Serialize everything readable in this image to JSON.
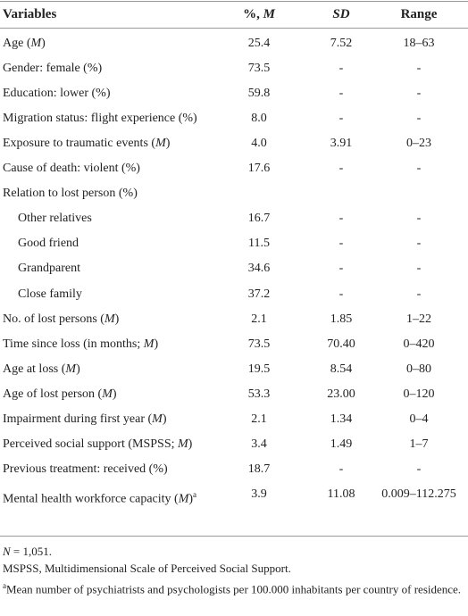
{
  "table": {
    "header": [
      "Variables",
      "%, M",
      "SD",
      "Range"
    ],
    "rows": [
      {
        "label": "Age (M)",
        "values": [
          "25.4",
          "7.52",
          "18–63"
        ]
      },
      {
        "label": "Gender: female (%)",
        "values": [
          "73.5",
          "-",
          "-"
        ]
      },
      {
        "label": "Education: lower (%)",
        "values": [
          "59.8",
          "-",
          "-"
        ]
      },
      {
        "label": "Migration status: flight experience (%)",
        "values": [
          "8.0",
          "-",
          "-"
        ]
      },
      {
        "label": "Exposure to traumatic events (M)",
        "values": [
          "4.0",
          "3.91",
          "0–23"
        ]
      },
      {
        "label": "Cause of death: violent (%)",
        "values": [
          "17.6",
          "-",
          "-"
        ]
      },
      {
        "label": "Relation to lost person (%)",
        "subrows": [
          {
            "label": "Other relatives",
            "values": [
              "16.7",
              "-",
              "-"
            ]
          },
          {
            "label": "Good friend",
            "values": [
              "11.5",
              "-",
              "-"
            ]
          },
          {
            "label": "Grandparent",
            "values": [
              "34.6",
              "-",
              "-"
            ]
          },
          {
            "label": "Close family",
            "values": [
              "37.2",
              "-",
              "-"
            ]
          }
        ]
      },
      {
        "label": "No. of lost persons (M)",
        "values": [
          "2.1",
          "1.85",
          "1–22"
        ]
      },
      {
        "label": "Time since loss (in months; M)",
        "values": [
          "73.5",
          "70.40",
          "0–420"
        ]
      },
      {
        "label": "Age at loss (M)",
        "values": [
          "19.5",
          "8.54",
          "0–80"
        ]
      },
      {
        "label": "Age of lost person (M)",
        "values": [
          "53.3",
          "23.00",
          "0–120"
        ]
      },
      {
        "label": "Impairment during first year (M)",
        "values": [
          "2.1",
          "1.34",
          "0–4"
        ]
      },
      {
        "label": "Perceived social support (MSPSS; M)",
        "values": [
          "3.4",
          "1.49",
          "1–7"
        ]
      },
      {
        "label": "Previous treatment: received (%)",
        "values": [
          "18.7",
          "-",
          "-"
        ]
      },
      {
        "label": "Mental health workforce capacity (M)",
        "note_marker": "a",
        "values": [
          "3.9",
          "11.08",
          "0.009–112.275"
        ]
      }
    ]
  },
  "footnotes": {
    "sample": "N = 1,051.",
    "abbreviation": "MSPSS, Multidimensional Scale of Perceived Social Support.",
    "note": {
      "marker": "a",
      "text": "Mean number of psychiatrists and psychologists per 100.000 inhabitants per country of residence."
    }
  }
}
